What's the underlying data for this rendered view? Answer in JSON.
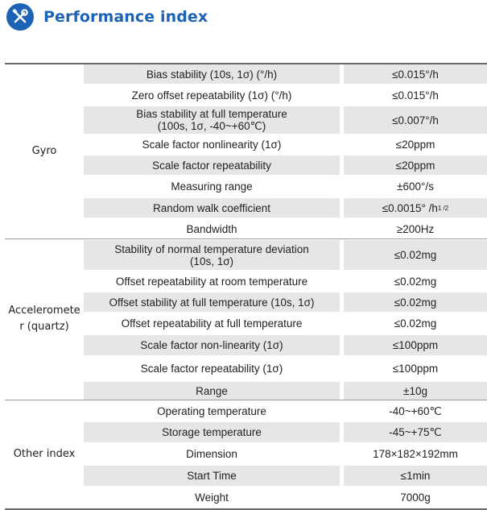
{
  "title": "Performance index",
  "colors": {
    "accent": "#1d63b5",
    "stripe": "#e6e6e6"
  },
  "icon": "wrench-screwdriver-icon",
  "groups": [
    {
      "name": "Gyro",
      "rows": [
        {
          "param": "Bias stability (10s, 1σ) (°/h)",
          "value": "≤0.015°/h"
        },
        {
          "param": "Zero offset repeatability (1σ) (°/h)",
          "value": "≤0.015°/h"
        },
        {
          "param": "Bias stability at full temperature\n(100s, 1σ, -40~+60℃)",
          "value": "≤0.007°/h"
        },
        {
          "param": "Scale factor nonlinearity (1σ)",
          "value": "≤20ppm"
        },
        {
          "param": "Scale factor repeatability",
          "value": "≤20ppm"
        },
        {
          "param": "Measuring range",
          "value": "±600°/s"
        },
        {
          "param": "Random walk coefficient",
          "value": "≤0.0015° /h",
          "value_sup": "1 /2"
        },
        {
          "param": "Bandwidth",
          "value": "≥200Hz"
        }
      ]
    },
    {
      "name": "Acceleromete\nr (quartz)",
      "rows": [
        {
          "param": "Stability of normal temperature deviation\n(10s, 1σ)",
          "value": "≤0.02mg"
        },
        {
          "param": "Offset repeatability at room temperature",
          "value": "≤0.02mg"
        },
        {
          "param": "Offset stability at full temperature (10s, 1σ)",
          "value": "≤0.02mg"
        },
        {
          "param": "Offset repeatability at full temperature",
          "value": "≤0.02mg"
        },
        {
          "param": "Scale factor non-linearity (1σ)",
          "value": "≤100ppm"
        },
        {
          "param": "Scale factor repeatability (1σ)",
          "value": "≤100ppm"
        },
        {
          "param": "Range",
          "value": "±10g"
        }
      ]
    },
    {
      "name": "Other index",
      "rows": [
        {
          "param": "Operating temperature",
          "value": "-40~+60℃"
        },
        {
          "param": "Storage temperature",
          "value": "-45~+75℃"
        },
        {
          "param": "Dimension",
          "value": "178×182×192mm"
        },
        {
          "param": "Start Time",
          "value": "≤1min"
        },
        {
          "param": "Weight",
          "value": "7000g"
        }
      ]
    }
  ]
}
